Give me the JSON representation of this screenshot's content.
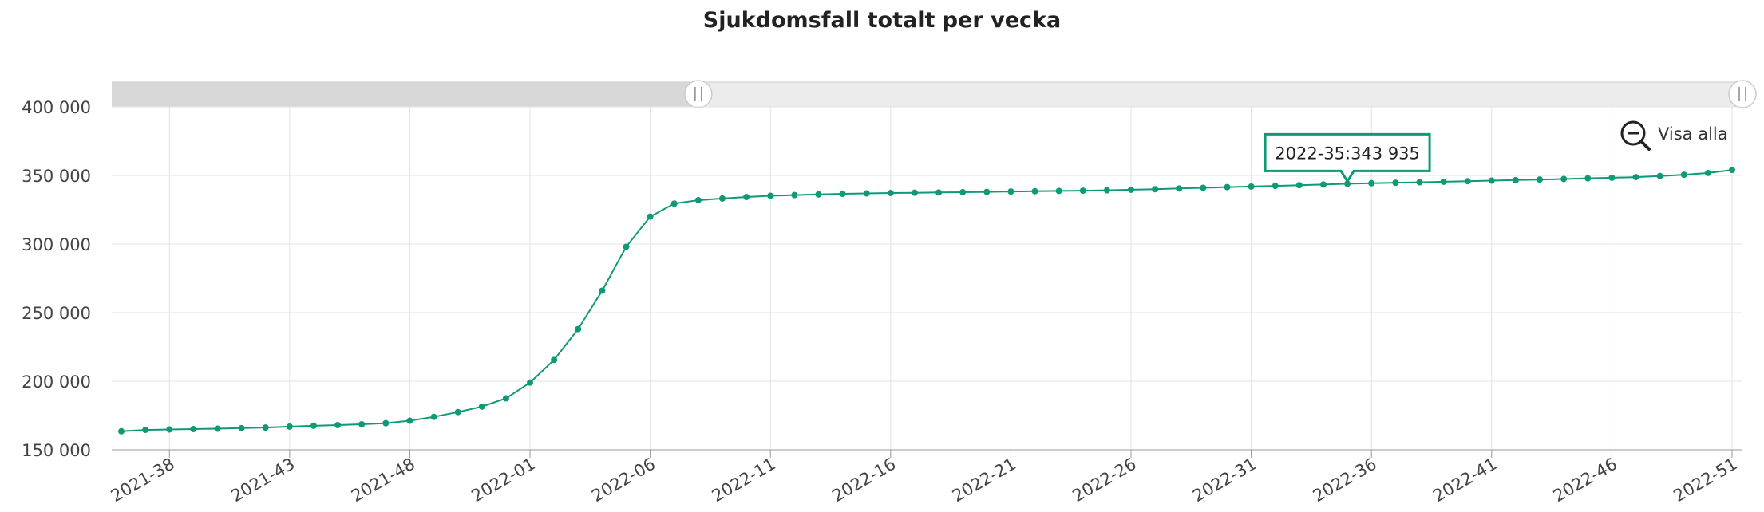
{
  "chart_data": {
    "type": "line",
    "title": "Sjukdomsfall totalt per vecka",
    "x": [
      "2021-36",
      "2021-37",
      "2021-38",
      "2021-39",
      "2021-40",
      "2021-41",
      "2021-42",
      "2021-43",
      "2021-44",
      "2021-45",
      "2021-46",
      "2021-47",
      "2021-48",
      "2021-49",
      "2021-50",
      "2021-51",
      "2021-52",
      "2022-01",
      "2022-02",
      "2022-03",
      "2022-04",
      "2022-05",
      "2022-06",
      "2022-07",
      "2022-08",
      "2022-09",
      "2022-10",
      "2022-11",
      "2022-12",
      "2022-13",
      "2022-14",
      "2022-15",
      "2022-16",
      "2022-17",
      "2022-18",
      "2022-19",
      "2022-20",
      "2022-21",
      "2022-22",
      "2022-23",
      "2022-24",
      "2022-25",
      "2022-26",
      "2022-27",
      "2022-28",
      "2022-29",
      "2022-30",
      "2022-31",
      "2022-32",
      "2022-33",
      "2022-34",
      "2022-35",
      "2022-36",
      "2022-37",
      "2022-38",
      "2022-39",
      "2022-40",
      "2022-41",
      "2022-42",
      "2022-43",
      "2022-44",
      "2022-45",
      "2022-46",
      "2022-47",
      "2022-48",
      "2022-49",
      "2022-50",
      "2022-51"
    ],
    "series": [
      {
        "values": [
          163500,
          164500,
          164800,
          165100,
          165400,
          165800,
          166200,
          166900,
          167500,
          168000,
          168600,
          169400,
          171200,
          174000,
          177500,
          181500,
          187500,
          199000,
          215500,
          238000,
          266000,
          298000,
          320000,
          329500,
          332000,
          333200,
          334300,
          335200,
          335700,
          336200,
          336600,
          336900,
          337200,
          337400,
          337600,
          337800,
          338000,
          338300,
          338500,
          338700,
          338900,
          339200,
          339600,
          340000,
          340500,
          341000,
          341500,
          341900,
          342400,
          342900,
          343400,
          343935,
          344300,
          344700,
          345000,
          345400,
          345800,
          346200,
          346600,
          347000,
          347400,
          347900,
          348300,
          348800,
          349600,
          350500,
          351800,
          354000
        ]
      }
    ],
    "xticks": [
      "2021-38",
      "2021-43",
      "2021-48",
      "2022-01",
      "2022-06",
      "2022-11",
      "2022-16",
      "2022-21",
      "2022-26",
      "2022-31",
      "2022-36",
      "2022-41",
      "2022-46",
      "2022-51"
    ],
    "yticks": [
      "150 000",
      "200 000",
      "250 000",
      "300 000",
      "350 000",
      "400 000"
    ],
    "ylim": [
      150000,
      400000
    ],
    "grid": true,
    "line_color": "#0f9977",
    "tooltip": {
      "text": "2022-35:343 935",
      "x": "2022-35",
      "y": 343935
    },
    "zoom_button": {
      "label": "Visa alla",
      "icon": "zoom-out-icon"
    },
    "navigator": {
      "selected_start": "2022-08",
      "selected_end": "2022-51"
    }
  }
}
